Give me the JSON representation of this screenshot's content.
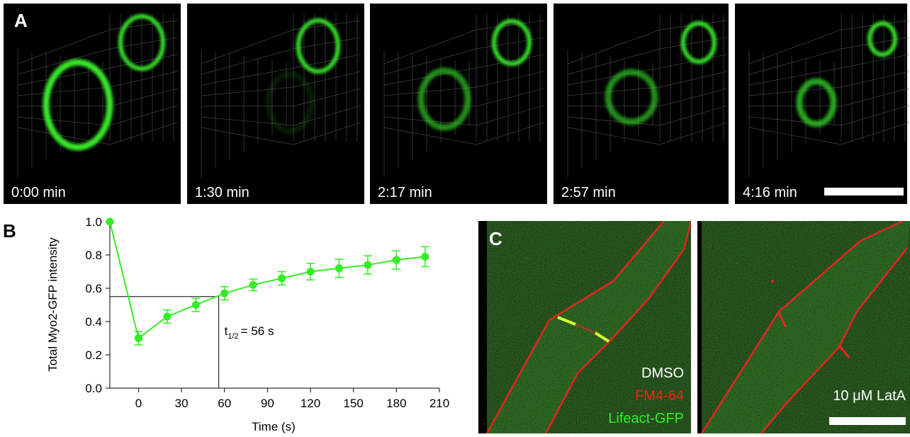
{
  "panel_a": {
    "label": "A",
    "times": [
      "0:00 min",
      "1:30 min",
      "2:17 min",
      "2:57 min",
      "4:16 min"
    ]
  },
  "chart_data": {
    "type": "line",
    "label": "B",
    "x_label": "Time (s)",
    "y_label": "Total Myo2-GFP intensity",
    "x": [
      -20,
      0,
      20,
      40,
      60,
      80,
      100,
      120,
      140,
      160,
      180,
      200
    ],
    "values": [
      1.0,
      0.3,
      0.43,
      0.5,
      0.57,
      0.62,
      0.66,
      0.7,
      0.72,
      0.74,
      0.77,
      0.79
    ],
    "errors": [
      0,
      0.04,
      0.04,
      0.04,
      0.04,
      0.035,
      0.04,
      0.05,
      0.055,
      0.055,
      0.055,
      0.06
    ],
    "color": "#33ee22",
    "xlim": [
      -20,
      210
    ],
    "xticks": [
      0,
      30,
      60,
      90,
      120,
      150,
      180,
      210
    ],
    "ylim": [
      0,
      1.0
    ],
    "yticks": [
      {
        "value": 0,
        "label": "0.0"
      },
      {
        "value": 0.2,
        "label": "0.2"
      },
      {
        "value": 0.4,
        "label": "0.4"
      },
      {
        "value": 0.6,
        "label": "0.6"
      },
      {
        "value": 0.8,
        "label": "0.8"
      },
      {
        "value": 1.0,
        "label": "1.0"
      }
    ],
    "half_time": {
      "x": 56,
      "y": 0.55
    },
    "annotation": {
      "text": "t",
      "subscript": "1/2",
      "suffix": "= 56 s"
    }
  },
  "panel_c": {
    "label": "C",
    "left_labels": [
      "DMSO",
      "FM4-64",
      "Lifeact-GFP"
    ],
    "right_label": "10 μM LatA"
  }
}
